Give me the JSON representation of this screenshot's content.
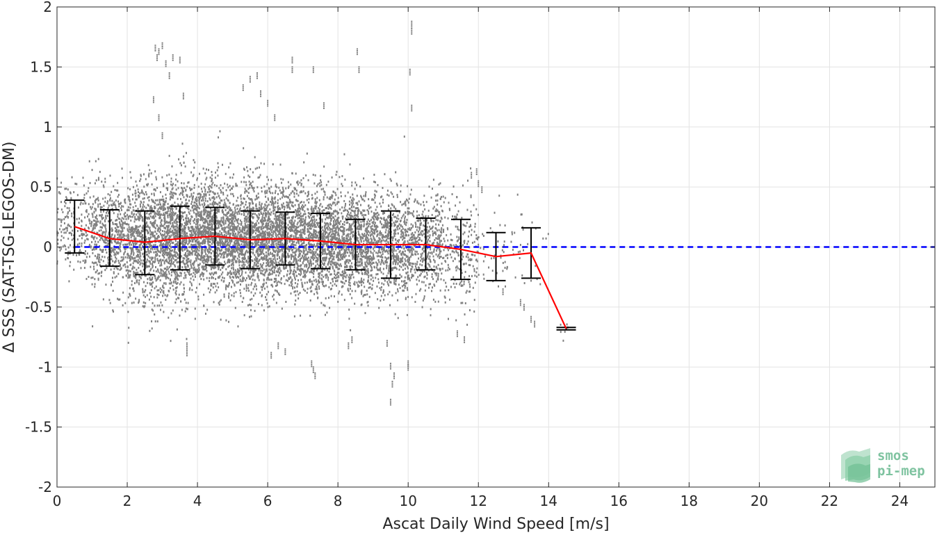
{
  "chart_data": {
    "type": "scatter",
    "xlabel": "Ascat Daily Wind Speed [m/s]",
    "ylabel": "Δ SSS (SAT-TSG-LEGOS-DM)",
    "xlim": [
      0,
      25
    ],
    "ylim": [
      -2,
      2
    ],
    "xticks": [
      0,
      2,
      4,
      6,
      8,
      10,
      12,
      14,
      16,
      18,
      20,
      22,
      24
    ],
    "yticks": [
      2,
      1.5,
      1,
      0.5,
      0,
      -0.5,
      -1,
      -1.5,
      -2
    ],
    "xtick_labels": [
      "0",
      "2",
      "4",
      "6",
      "8",
      "10",
      "12",
      "14",
      "16",
      "18",
      "20",
      "22",
      "24"
    ],
    "ytick_labels": [
      "2",
      "1.5",
      "1",
      "0.5",
      "0",
      "-0.5",
      "-1",
      "-1.5",
      "-2"
    ],
    "grid": true,
    "reference_line": {
      "y": 0,
      "style": "dashed",
      "color": "#0000ff"
    },
    "mean_line": {
      "color": "#ff0000",
      "x": [
        0.5,
        1.5,
        2.5,
        3.5,
        4.5,
        5.5,
        6.5,
        7.5,
        8.5,
        9.5,
        10.5,
        11.5,
        12.5,
        13.5,
        14.5
      ],
      "y": [
        0.17,
        0.07,
        0.04,
        0.07,
        0.09,
        0.06,
        0.07,
        0.05,
        0.02,
        0.02,
        0.02,
        -0.02,
        -0.08,
        -0.05,
        -0.68
      ]
    },
    "error_bars": {
      "color": "#000000",
      "x": [
        0.5,
        1.5,
        2.5,
        3.5,
        4.5,
        5.5,
        6.5,
        7.5,
        8.5,
        9.5,
        10.5,
        11.5,
        12.5,
        13.5,
        14.5
      ],
      "lower": [
        -0.05,
        -0.16,
        -0.23,
        -0.19,
        -0.15,
        -0.18,
        -0.15,
        -0.18,
        -0.19,
        -0.26,
        -0.19,
        -0.27,
        -0.28,
        -0.26,
        -0.69
      ],
      "upper": [
        0.39,
        0.31,
        0.3,
        0.34,
        0.33,
        0.3,
        0.29,
        0.28,
        0.23,
        0.3,
        0.24,
        0.23,
        0.12,
        0.16,
        -0.67
      ]
    },
    "scatter": {
      "color": "#808080",
      "bins": [
        {
          "x0": 0.0,
          "x1": 1.0,
          "mean": 0.17,
          "std": 0.18,
          "n": 220
        },
        {
          "x0": 1.0,
          "x1": 2.0,
          "mean": 0.07,
          "std": 0.2,
          "n": 500
        },
        {
          "x0": 2.0,
          "x1": 3.0,
          "mean": 0.04,
          "std": 0.24,
          "n": 800
        },
        {
          "x0": 3.0,
          "x1": 4.0,
          "mean": 0.07,
          "std": 0.24,
          "n": 1000
        },
        {
          "x0": 4.0,
          "x1": 5.0,
          "mean": 0.09,
          "std": 0.22,
          "n": 1050
        },
        {
          "x0": 5.0,
          "x1": 6.0,
          "mean": 0.06,
          "std": 0.22,
          "n": 1050
        },
        {
          "x0": 6.0,
          "x1": 7.0,
          "mean": 0.07,
          "std": 0.21,
          "n": 1000
        },
        {
          "x0": 7.0,
          "x1": 8.0,
          "mean": 0.05,
          "std": 0.21,
          "n": 900
        },
        {
          "x0": 8.0,
          "x1": 9.0,
          "mean": 0.02,
          "std": 0.2,
          "n": 800
        },
        {
          "x0": 9.0,
          "x1": 10.0,
          "mean": 0.02,
          "std": 0.2,
          "n": 650
        },
        {
          "x0": 10.0,
          "x1": 11.0,
          "mean": 0.02,
          "std": 0.2,
          "n": 450
        },
        {
          "x0": 11.0,
          "x1": 12.0,
          "mean": -0.02,
          "std": 0.22,
          "n": 220
        },
        {
          "x0": 12.0,
          "x1": 13.0,
          "mean": -0.08,
          "std": 0.18,
          "n": 45
        },
        {
          "x0": 13.0,
          "x1": 14.0,
          "mean": -0.05,
          "std": 0.2,
          "n": 25
        },
        {
          "x0": 14.3,
          "x1": 14.7,
          "mean": -0.68,
          "std": 0.02,
          "n": 6
        }
      ],
      "outliers": [
        [
          2.8,
          1.68
        ],
        [
          2.85,
          1.6
        ],
        [
          2.9,
          1.65
        ],
        [
          3.0,
          1.7
        ],
        [
          3.1,
          1.55
        ],
        [
          3.2,
          1.45
        ],
        [
          3.3,
          1.6
        ],
        [
          3.5,
          1.58
        ],
        [
          2.75,
          1.25
        ],
        [
          2.9,
          1.1
        ],
        [
          3.6,
          1.28
        ],
        [
          3.0,
          0.95
        ],
        [
          5.5,
          1.42
        ],
        [
          5.7,
          1.45
        ],
        [
          5.3,
          1.35
        ],
        [
          6.2,
          1.1
        ],
        [
          6.0,
          1.22
        ],
        [
          5.8,
          1.3
        ],
        [
          6.7,
          1.58
        ],
        [
          6.7,
          1.5
        ],
        [
          7.3,
          1.5
        ],
        [
          7.6,
          1.2
        ],
        [
          8.55,
          1.65
        ],
        [
          8.6,
          1.5
        ],
        [
          10.1,
          1.88
        ],
        [
          10.1,
          1.82
        ],
        [
          10.05,
          1.48
        ],
        [
          10.1,
          1.18
        ],
        [
          3.7,
          -0.8
        ],
        [
          3.7,
          -0.86
        ],
        [
          7.3,
          -1.0
        ],
        [
          7.35,
          -1.05
        ],
        [
          7.25,
          -0.95
        ],
        [
          9.5,
          -0.97
        ],
        [
          9.55,
          -1.12
        ],
        [
          9.5,
          -1.27
        ],
        [
          9.6,
          -1.05
        ],
        [
          10.0,
          -0.95
        ],
        [
          10.0,
          -0.98
        ],
        [
          6.3,
          -0.8
        ],
        [
          6.5,
          -0.85
        ],
        [
          6.1,
          -0.88
        ],
        [
          8.3,
          -0.8
        ],
        [
          8.4,
          -0.75
        ],
        [
          9.4,
          -0.78
        ],
        [
          11.4,
          -0.7
        ],
        [
          11.6,
          -0.75
        ],
        [
          12.1,
          0.5
        ],
        [
          12.0,
          0.55
        ],
        [
          11.95,
          0.65
        ],
        [
          11.8,
          0.62
        ],
        [
          13.3,
          -0.48
        ],
        [
          13.2,
          -0.44
        ],
        [
          13.5,
          -0.58
        ],
        [
          13.6,
          -0.62
        ],
        [
          12.7,
          -0.35
        ]
      ]
    },
    "logo": {
      "line1": "smos",
      "line2": "pi-mep"
    }
  }
}
